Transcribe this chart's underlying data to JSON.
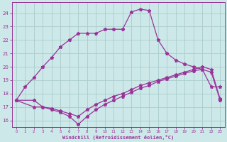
{
  "xlabel": "Windchill (Refroidissement éolien,°C)",
  "xlim": [
    -0.5,
    23.5
  ],
  "ylim": [
    15.5,
    24.8
  ],
  "xticks": [
    0,
    1,
    2,
    3,
    4,
    5,
    6,
    7,
    8,
    9,
    10,
    11,
    12,
    13,
    14,
    15,
    16,
    17,
    18,
    19,
    20,
    21,
    22,
    23
  ],
  "yticks": [
    16,
    17,
    18,
    19,
    20,
    21,
    22,
    23,
    24
  ],
  "bg_color": "#cde8e8",
  "grid_color": "#aacccc",
  "line_color": "#993399",
  "line1_x": [
    0,
    1,
    2,
    3,
    4,
    5,
    6,
    7,
    8,
    9,
    10,
    11,
    12,
    13,
    14,
    15,
    16,
    17,
    18,
    19,
    20,
    21,
    22,
    23
  ],
  "line1_y": [
    17.5,
    18.5,
    19.2,
    20.0,
    20.7,
    21.5,
    22.0,
    22.5,
    22.5,
    22.5,
    22.8,
    22.8,
    22.8,
    24.1,
    24.3,
    24.2,
    22.0,
    21.0,
    20.5,
    20.2,
    20.0,
    19.8,
    18.5,
    18.5
  ],
  "line2_x": [
    0,
    2,
    3,
    4,
    5,
    6,
    7,
    8,
    9,
    10,
    11,
    12,
    13,
    14,
    15,
    16,
    17,
    18,
    19,
    20,
    21,
    22,
    23
  ],
  "line2_y": [
    17.5,
    17.5,
    17.0,
    16.9,
    16.7,
    16.5,
    16.3,
    16.8,
    17.2,
    17.5,
    17.8,
    18.0,
    18.3,
    18.6,
    18.8,
    19.0,
    19.2,
    19.4,
    19.6,
    19.8,
    20.0,
    19.8,
    17.6
  ],
  "line3_x": [
    0,
    2,
    3,
    4,
    5,
    6,
    7,
    8,
    9,
    10,
    11,
    12,
    13,
    14,
    15,
    16,
    17,
    18,
    19,
    20,
    21,
    22,
    23
  ],
  "line3_y": [
    17.5,
    17.0,
    17.0,
    16.8,
    16.6,
    16.3,
    15.7,
    16.3,
    16.8,
    17.2,
    17.5,
    17.8,
    18.1,
    18.4,
    18.6,
    18.9,
    19.1,
    19.3,
    19.5,
    19.7,
    19.8,
    19.6,
    17.5
  ]
}
